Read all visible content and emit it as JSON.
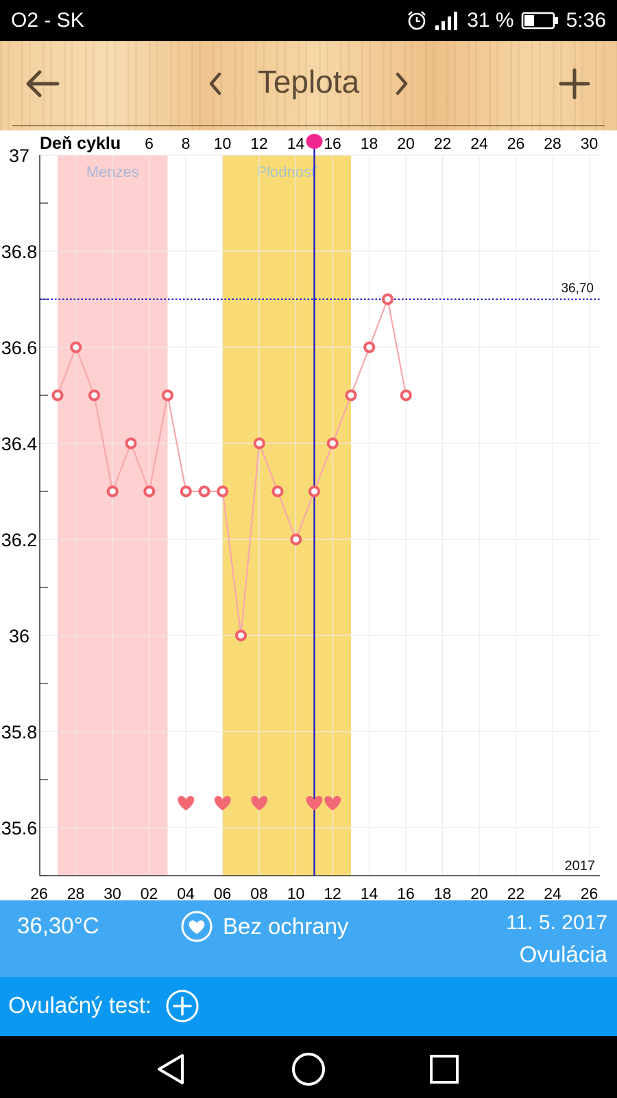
{
  "status_bar": {
    "carrier": "O2 - SK",
    "battery": "31 %",
    "time": "5:36",
    "icons": [
      "alarm-icon",
      "signal-icon",
      "battery-icon"
    ]
  },
  "toolbar": {
    "title": "Teplota",
    "icons": [
      "arrow-left-icon",
      "chevron-left-icon",
      "chevron-right-icon",
      "plus-icon"
    ]
  },
  "chart_data": {
    "type": "line",
    "title": "",
    "top_axis_label": "Deň cyklu",
    "cycle_ticks": [
      "6",
      "8",
      "10",
      "12",
      "14",
      "16",
      "18",
      "20",
      "22",
      "24",
      "26",
      "28",
      "30"
    ],
    "date_ticks": [
      "26",
      "28",
      "30",
      "02",
      "04",
      "06",
      "08",
      "10",
      "12",
      "14",
      "16",
      "18",
      "20",
      "22",
      "24",
      "26"
    ],
    "y_ticks": [
      "37",
      "36.8",
      "36.6",
      "36.4",
      "36.2",
      "36",
      "35.8",
      "35.6"
    ],
    "ylim": [
      35.5,
      37.0
    ],
    "year": "2017",
    "series": [
      {
        "values": [
          36.5,
          36.6,
          36.5,
          36.3,
          36.4,
          36.3,
          36.5,
          36.3,
          36.3,
          36.3,
          36.0,
          36.4,
          36.3,
          36.2,
          36.3,
          36.4,
          36.5,
          36.6,
          36.7,
          36.5
        ],
        "color": "#f0606a"
      }
    ],
    "threshold": {
      "value": 36.7,
      "label": "36,70",
      "color": "#1a1ad0"
    },
    "bands": [
      {
        "label": "Menzes",
        "from_cycle_day": 1,
        "to_cycle_day": 6,
        "color": "#ffd0d0",
        "label_color": "#a9b8d8"
      },
      {
        "label": "Plodnosť",
        "from_cycle_day": 10,
        "to_cycle_day": 16,
        "color": "#f9db76",
        "label_color": "#a9c6c8"
      }
    ],
    "intercourse_days": [
      8,
      10,
      12,
      15,
      16
    ],
    "selected_cycle_day": 15,
    "selected_color": "#2020c0",
    "grid": true
  },
  "info": {
    "temperature": "36,30°C",
    "protection": "Bez ochrany",
    "date": "11. 5. 2017",
    "phase": "Ovulácia",
    "icons": [
      "heart-circle-icon"
    ]
  },
  "ovulation_test": {
    "label": "Ovulačný test:",
    "icons": [
      "plus-circle-icon"
    ]
  },
  "nav_bar": {
    "icons": [
      "triangle-back-icon",
      "circle-home-icon",
      "square-recent-icon"
    ]
  },
  "colors": {
    "info_panel": "#41a9f4",
    "ovul_panel": "#0a98f2"
  }
}
